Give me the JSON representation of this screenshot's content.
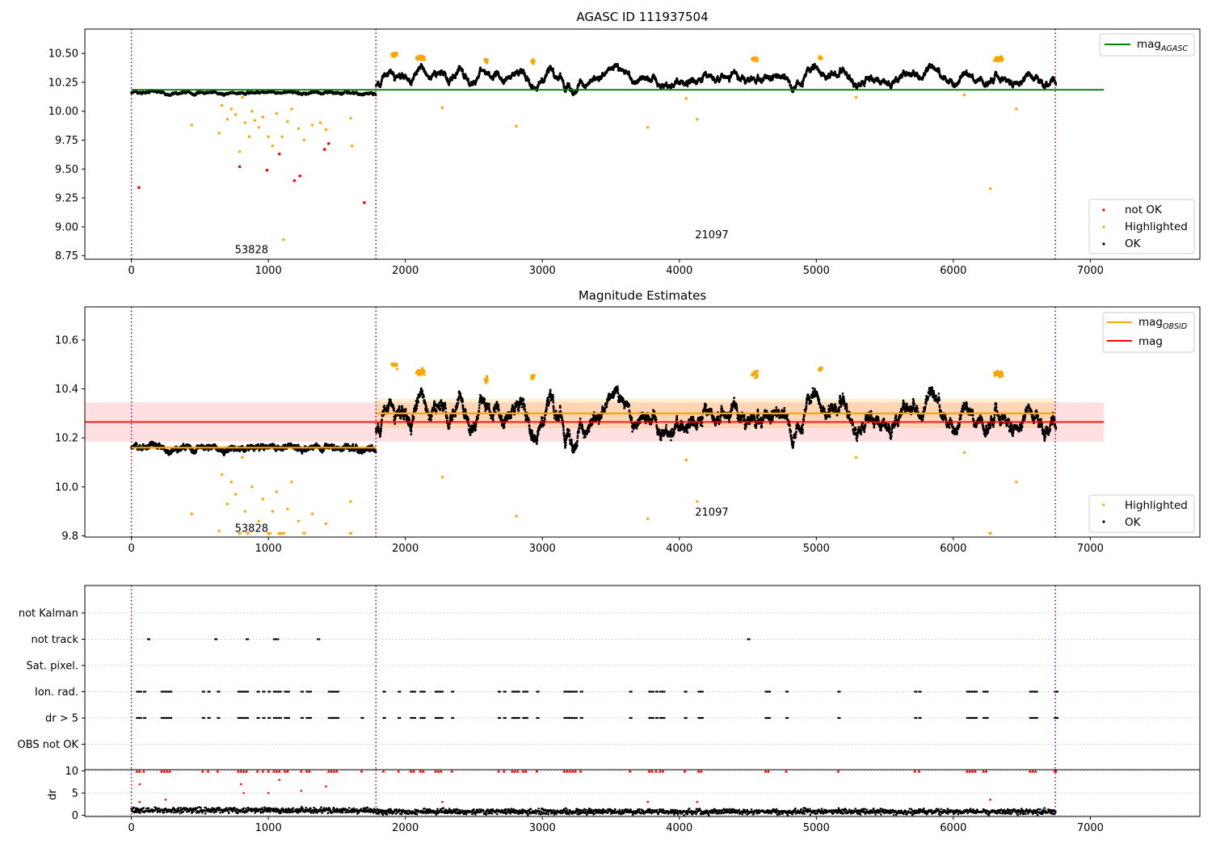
{
  "chart_data": [
    {
      "type": "scatter",
      "title": "AGASC ID 111937504",
      "xlabel": "",
      "ylabel": "",
      "xlim": [
        -340,
        7800
      ],
      "ylim": [
        8.72,
        10.71
      ],
      "xticks": [
        0,
        1000,
        2000,
        3000,
        4000,
        5000,
        6000,
        7000
      ],
      "yticks": [
        8.75,
        9.0,
        9.25,
        9.5,
        9.75,
        10.0,
        10.25,
        10.5
      ],
      "ytick_labels": [
        "8.75",
        "9.00",
        "9.25",
        "9.50",
        "9.75",
        "10.00",
        "10.25",
        "10.50"
      ],
      "grid": false,
      "obs_boundaries": [
        0,
        1785,
        6745
      ],
      "obs_labels": [
        {
          "text": "53828",
          "x": 755,
          "y": 8.8
        },
        {
          "text": "21097",
          "x": 4115,
          "y": 8.93
        }
      ],
      "mag_agasc": {
        "value": 10.185,
        "x_range": [
          0,
          7100
        ],
        "color": "#008000"
      },
      "series": [
        {
          "name": "not OK",
          "color": "#ff0000",
          "points": [
            [
              55,
              9.34
            ],
            [
              790,
              9.52
            ],
            [
              990,
              9.49
            ],
            [
              1080,
              9.63
            ],
            [
              1190,
              9.4
            ],
            [
              1230,
              9.44
            ],
            [
              1410,
              9.67
            ],
            [
              1440,
              9.72
            ],
            [
              1700,
              9.21
            ]
          ]
        },
        {
          "name": "Highlighted",
          "color": "#ffa500",
          "points": [
            [
              440,
              9.88
            ],
            [
              640,
              9.81
            ],
            [
              660,
              10.05
            ],
            [
              700,
              9.93
            ],
            [
              730,
              10.02
            ],
            [
              760,
              9.97
            ],
            [
              790,
              9.65
            ],
            [
              810,
              10.12
            ],
            [
              830,
              9.9
            ],
            [
              860,
              9.78
            ],
            [
              880,
              10.0
            ],
            [
              900,
              9.92
            ],
            [
              930,
              9.86
            ],
            [
              960,
              9.95
            ],
            [
              1000,
              9.78
            ],
            [
              1030,
              9.7
            ],
            [
              1060,
              9.98
            ],
            [
              1100,
              9.78
            ],
            [
              1110,
              8.89
            ],
            [
              1140,
              9.91
            ],
            [
              1170,
              10.02
            ],
            [
              1220,
              9.85
            ],
            [
              1260,
              9.75
            ],
            [
              1320,
              9.88
            ],
            [
              1380,
              9.9
            ],
            [
              1420,
              9.84
            ],
            [
              1600,
              9.94
            ],
            [
              1610,
              9.7
            ],
            [
              2270,
              10.03
            ],
            [
              2810,
              9.87
            ],
            [
              3770,
              9.86
            ],
            [
              4050,
              10.11
            ],
            [
              4130,
              9.93
            ],
            [
              5290,
              10.12
            ],
            [
              6080,
              10.14
            ],
            [
              6270,
              9.33
            ],
            [
              6460,
              10.02
            ]
          ]
        },
        {
          "name": "OK",
          "color": "#000000",
          "description": "dense time series of ~6700 points"
        }
      ],
      "legend": {
        "placement": "top-right and lower-right",
        "entries": [
          "mag_AGASC",
          "not OK",
          "Highlighted",
          "OK"
        ]
      }
    },
    {
      "type": "scatter",
      "title": "Magnitude Estimates",
      "xlabel": "",
      "ylabel": "",
      "xlim": [
        -340,
        7800
      ],
      "ylim": [
        9.795,
        10.735
      ],
      "xticks": [
        0,
        1000,
        2000,
        3000,
        4000,
        5000,
        6000,
        7000
      ],
      "yticks": [
        9.8,
        10.0,
        10.2,
        10.4,
        10.6
      ],
      "ytick_labels": [
        "9.8",
        "10.0",
        "10.2",
        "10.4",
        "10.6"
      ],
      "grid": false,
      "obs_boundaries": [
        0,
        1785,
        6745
      ],
      "obs_labels": [
        {
          "text": "53828",
          "x": 755,
          "y": 9.83
        },
        {
          "text": "21097",
          "x": 4115,
          "y": 9.895
        }
      ],
      "mag": {
        "value": 10.265,
        "band": [
          10.185,
          10.345
        ],
        "x_range": [
          -340,
          7100
        ],
        "color": "#ff0000"
      },
      "mag_obsid": [
        {
          "value": 10.16,
          "band": [
            10.15,
            10.17
          ],
          "x_range": [
            0,
            1785
          ]
        },
        {
          "value": 10.3,
          "band": [
            10.24,
            10.36
          ],
          "x_range": [
            1785,
            6745
          ]
        }
      ],
      "series": [
        {
          "name": "Highlighted",
          "color": "#ffa500",
          "points": [
            [
              440,
              9.89
            ],
            [
              640,
              9.82
            ],
            [
              660,
              10.05
            ],
            [
              700,
              9.93
            ],
            [
              730,
              10.02
            ],
            [
              760,
              9.97
            ],
            [
              810,
              10.12
            ],
            [
              830,
              9.9
            ],
            [
              880,
              10.0
            ],
            [
              930,
              9.86
            ],
            [
              960,
              9.95
            ],
            [
              1030,
              9.9
            ],
            [
              1060,
              9.98
            ],
            [
              1140,
              9.91
            ],
            [
              1170,
              10.02
            ],
            [
              1220,
              9.86
            ],
            [
              1320,
              9.89
            ],
            [
              1420,
              9.85
            ],
            [
              1600,
              9.94
            ],
            [
              2270,
              10.04
            ],
            [
              2810,
              9.88
            ],
            [
              3770,
              9.87
            ],
            [
              4050,
              10.11
            ],
            [
              4130,
              9.94
            ],
            [
              5290,
              10.12
            ],
            [
              6080,
              10.14
            ],
            [
              6460,
              10.02
            ]
          ]
        },
        {
          "name": "OK",
          "color": "#000000",
          "description": "dense time series"
        }
      ],
      "legend": {
        "placement": "top-right and lower-right",
        "entries": [
          "mag_OBSID",
          "mag",
          "Highlighted",
          "OK"
        ]
      }
    },
    {
      "type": "scatter",
      "title": "",
      "xlabel": "",
      "ylabel": "",
      "xlim": [
        -340,
        7800
      ],
      "categories": [
        "not Kalman",
        "not track",
        "Sat. pixel.",
        "Ion. rad.",
        "dr > 5",
        "OBS not OK"
      ],
      "grid": true,
      "obs_boundaries": [
        0,
        1785,
        6745
      ],
      "flag_positions": {
        "not track": [
          120,
          610,
          840,
          1040,
          1060,
          1360,
          4500
        ],
        "Ion. rad.": [
          40,
          60,
          90,
          220,
          240,
          260,
          280,
          520,
          560,
          630,
          780,
          800,
          820,
          840,
          920,
          960,
          1000,
          1040,
          1060,
          1080,
          1120,
          1140,
          1240,
          1280,
          1300,
          1440,
          1460,
          1480,
          1500,
          1840,
          1950,
          2040,
          2060,
          2110,
          2130,
          2220,
          2240,
          2260,
          2340,
          2680,
          2720,
          2780,
          2800,
          2820,
          2860,
          2880,
          2960,
          3160,
          3180,
          3200,
          3220,
          3240,
          3280,
          3640,
          3780,
          3800,
          3830,
          3860,
          3880,
          4040,
          4140,
          4160,
          4630,
          4650,
          4780,
          5160,
          5720,
          5750,
          6100,
          6120,
          6140,
          6160,
          6220,
          6240,
          6560,
          6580,
          6600,
          6740,
          6750
        ],
        "dr > 5": [
          40,
          60,
          90,
          220,
          240,
          260,
          280,
          520,
          560,
          630,
          780,
          800,
          820,
          840,
          920,
          960,
          1000,
          1040,
          1060,
          1080,
          1120,
          1140,
          1240,
          1280,
          1300,
          1440,
          1460,
          1480,
          1500,
          1680,
          1840,
          1950,
          2040,
          2060,
          2110,
          2130,
          2220,
          2240,
          2260,
          2340,
          2680,
          2720,
          2780,
          2800,
          2820,
          2860,
          2880,
          2960,
          3160,
          3180,
          3200,
          3220,
          3240,
          3280,
          3640,
          3780,
          3800,
          3830,
          3860,
          3880,
          4040,
          4140,
          4160,
          4630,
          4650,
          4780,
          5160,
          5720,
          5750,
          6100,
          6120,
          6140,
          6160,
          6220,
          6240,
          6560,
          6580,
          6600,
          6740,
          6750
        ]
      }
    },
    {
      "type": "scatter",
      "title": "",
      "xlabel": "",
      "ylabel": "dr",
      "xlim": [
        -340,
        7800
      ],
      "ylim": [
        -0.3,
        10.3
      ],
      "xticks": [
        0,
        1000,
        2000,
        3000,
        4000,
        5000,
        6000,
        7000
      ],
      "yticks": [
        0,
        5,
        10
      ],
      "grid": true,
      "series": [
        {
          "name": "dr",
          "color": "#000000",
          "description": "small values 0-2 across all times"
        },
        {
          "name": "dr > 5",
          "color": "#ff0000",
          "marker": "triangle",
          "points_at_y": 10
        }
      ]
    }
  ],
  "colors": {
    "ok": "#000000",
    "highlighted": "#ffa500",
    "not_ok": "#ff0000",
    "agasc": "#008000",
    "boundary": "#800080"
  }
}
